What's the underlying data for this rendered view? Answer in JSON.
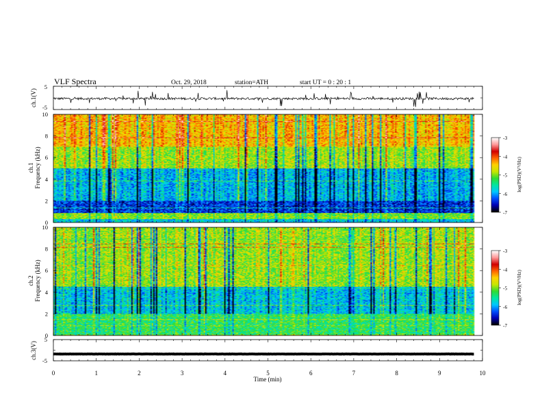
{
  "header": {
    "title": "VLF  Spectra",
    "date": "Oct. 29, 2018",
    "station": "station=ATH",
    "start": "start  UT =   0 : 20 : 1"
  },
  "chart_data": [
    {
      "type": "line",
      "name": "ch1-waveform",
      "ylabel": "ch.1(V)",
      "ylim": [
        -5,
        5
      ],
      "yticks": [
        "5",
        "-5"
      ],
      "xlim": [
        0,
        10
      ],
      "data_xrange": [
        0,
        9.8
      ],
      "baseline": -0.3,
      "noise_amplitude": 1.0,
      "spike_amplitude": 3.5
    },
    {
      "type": "heatmap",
      "name": "ch1-spectrogram",
      "ylabel_line1": "ch.1",
      "ylabel_line2": "Frequency  (kHz)",
      "ylim": [
        0,
        10
      ],
      "yticks": [
        "0",
        "2",
        "4",
        "6",
        "8",
        "10"
      ],
      "xlim": [
        0,
        10
      ],
      "data_xrange": [
        0,
        9.8
      ],
      "colorbar": {
        "label": "log(PSD)(V²/Hz)",
        "ticks": [
          "-3",
          "-4",
          "-5",
          "-6",
          "-7"
        ],
        "range": [
          -7,
          -3
        ]
      },
      "bands": [
        {
          "from_khz": 0.0,
          "to_khz": 0.3,
          "log_psd": -5.8
        },
        {
          "from_khz": 0.3,
          "to_khz": 0.9,
          "log_psd": -5.0
        },
        {
          "from_khz": 0.9,
          "to_khz": 2.0,
          "log_psd": -6.4
        },
        {
          "from_khz": 2.0,
          "to_khz": 5.0,
          "log_psd": -5.9
        },
        {
          "from_khz": 5.0,
          "to_khz": 7.0,
          "log_psd": -4.9
        },
        {
          "from_khz": 7.0,
          "to_khz": 10.0,
          "log_psd": -4.4
        }
      ]
    },
    {
      "type": "heatmap",
      "name": "ch2-spectrogram",
      "ylabel_line1": "ch.2",
      "ylabel_line2": "Frequency  (kHz)",
      "ylim": [
        0,
        10
      ],
      "yticks": [
        "0",
        "2",
        "4",
        "6",
        "8",
        "10"
      ],
      "xlim": [
        0,
        10
      ],
      "data_xrange": [
        0,
        9.8
      ],
      "colorbar": {
        "label": "log(PSD)(V²/Hz)",
        "ticks": [
          "-3",
          "-4",
          "-5",
          "-6",
          "-7"
        ],
        "range": [
          -7,
          -3
        ]
      },
      "bands": [
        {
          "from_khz": 0.0,
          "to_khz": 2.0,
          "log_psd": -5.3
        },
        {
          "from_khz": 2.0,
          "to_khz": 4.5,
          "log_psd": -5.8
        },
        {
          "from_khz": 4.5,
          "to_khz": 10.0,
          "log_psd": -4.9
        }
      ]
    },
    {
      "type": "line",
      "name": "ch3-waveform",
      "ylabel": "ch.3(V)",
      "ylim": [
        -5,
        5
      ],
      "yticks": [
        "5",
        "-5"
      ],
      "xlim": [
        0,
        10
      ],
      "data_xrange": [
        0,
        9.8
      ],
      "baseline": -1.8,
      "noise_amplitude": 0.1,
      "spike_amplitude": 0
    }
  ],
  "xaxis": {
    "label": "Time  (min)",
    "range": [
      0,
      10
    ],
    "ticks": [
      "0",
      "1",
      "2",
      "3",
      "4",
      "5",
      "6",
      "7",
      "8",
      "9",
      "10"
    ]
  },
  "colors": {
    "colormap": [
      "#000000",
      "#0000b4",
      "#0050ff",
      "#00c8ff",
      "#00e6a0",
      "#32dc32",
      "#c8e600",
      "#ffd200",
      "#ff6400",
      "#d20000",
      "#ff9696",
      "#ffffff"
    ]
  }
}
